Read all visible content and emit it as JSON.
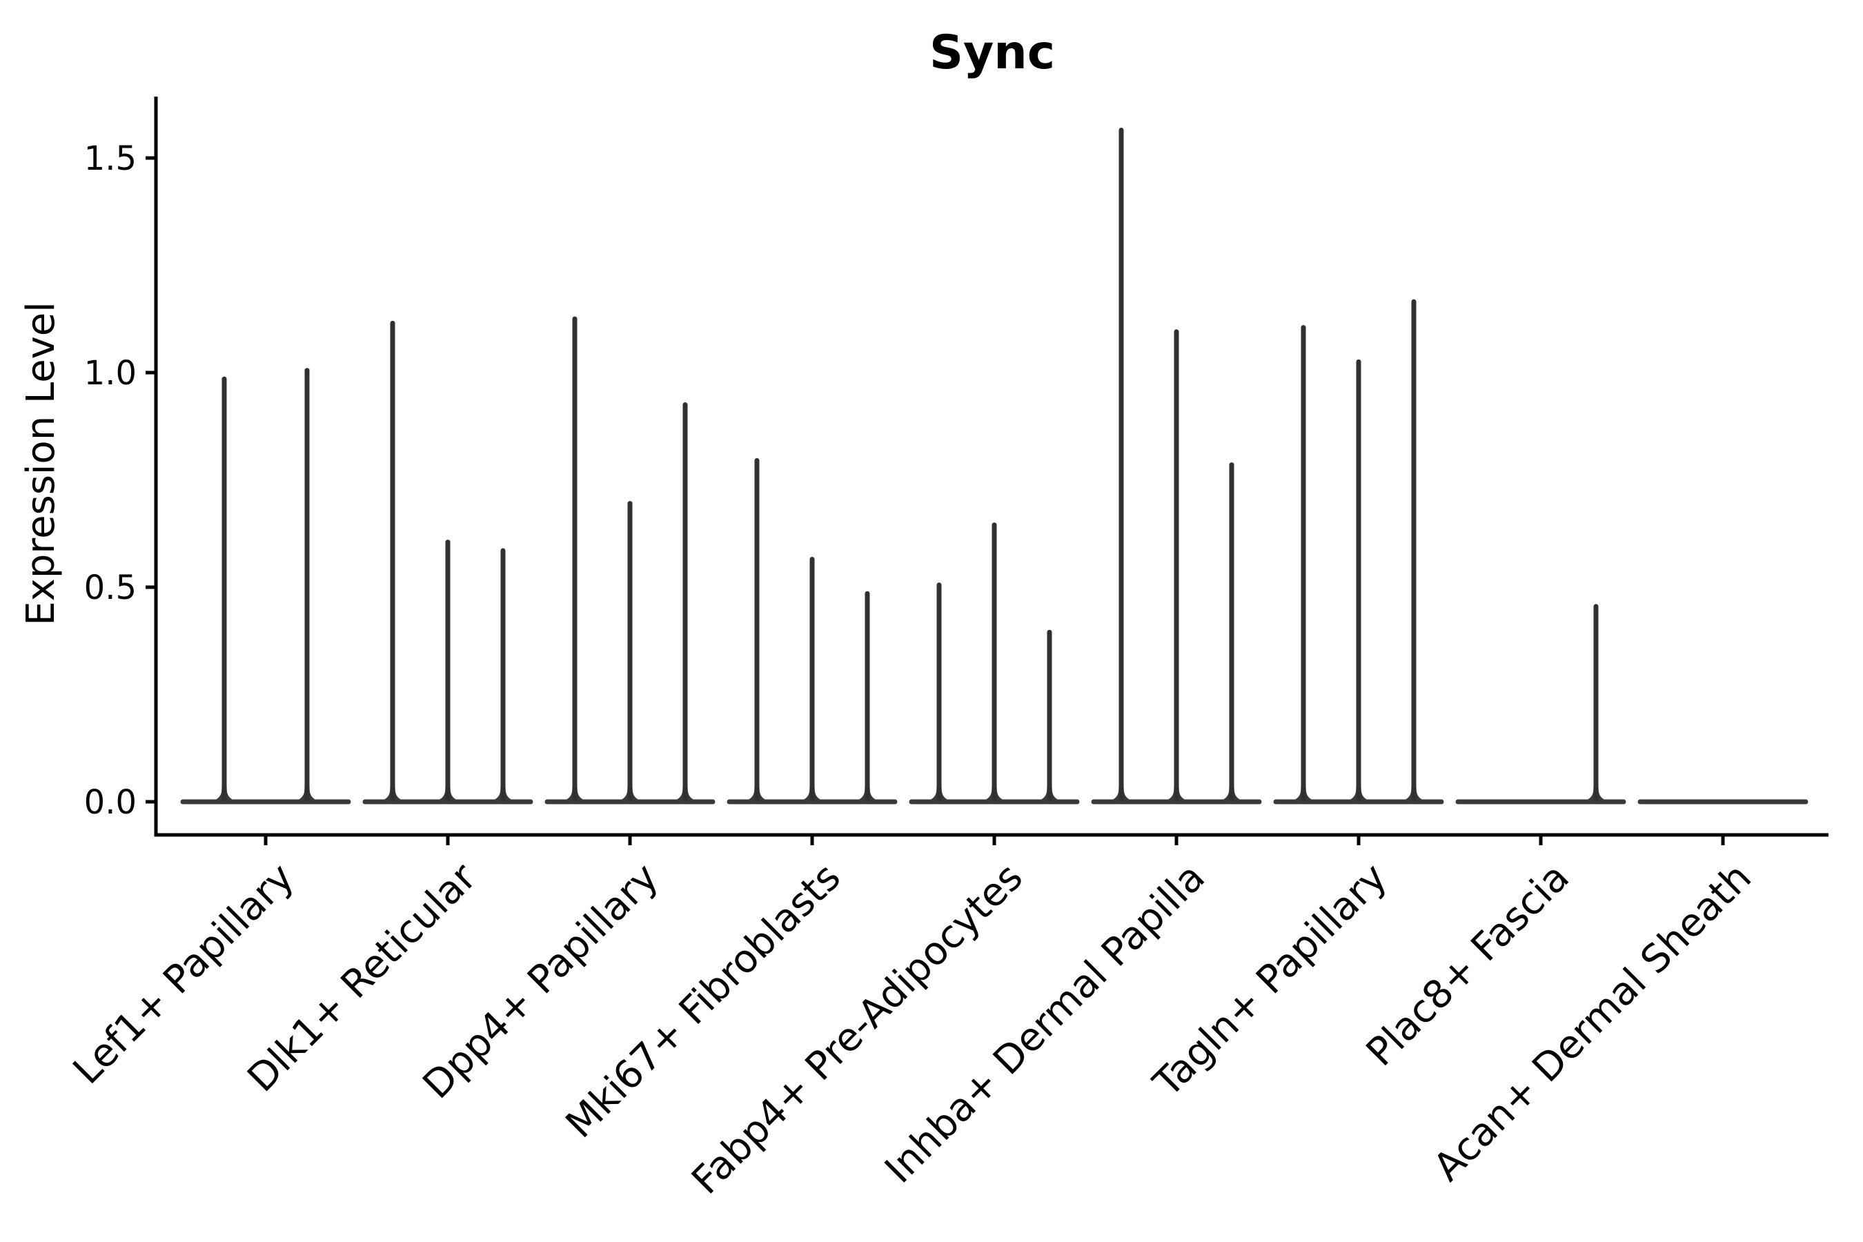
{
  "title": "Sync",
  "y_axis": {
    "label": "Expression Level",
    "ticks": [
      {
        "label": "1.5",
        "value": 1.5
      },
      {
        "label": "1.0",
        "value": 1.0
      },
      {
        "label": "0.5",
        "value": 0.5
      },
      {
        "label": "0.0",
        "value": 0.0
      }
    ]
  },
  "x_axis": {
    "categories": [
      "Lef1+ Papillary",
      "Dlk1+ Reticular",
      "Dpp4+ Papillary",
      "Mki67+ Fibroblasts",
      "Fabp4+ Pre-Adipocytes",
      "Inhba+ Dermal Papilla",
      "Tagln+ Papillary",
      "Plac8+ Fascia",
      "Acan+ Dermal Sheath"
    ]
  },
  "style": {
    "axis_color": "#000000",
    "violin_line_color": "#303030",
    "violin_base_color": "#3a3a3a",
    "background": "#ffffff"
  },
  "chart_data": {
    "type": "violin",
    "title": "Sync",
    "xlabel": "",
    "ylabel": "Expression Level",
    "ylim": [
      -0.08,
      1.64
    ],
    "yticks": [
      0.0,
      0.5,
      1.0,
      1.5
    ],
    "grid": false,
    "legend_position": "none",
    "notes": "Violin plot with near-zero bodies: each violin renders as a flat base segment at 0 plus a thin vertical spike up to its maximum expression value. 0 means a flat violin with no spike.",
    "categories": [
      "Lef1+ Papillary",
      "Dlk1+ Reticular",
      "Dpp4+ Papillary",
      "Mki67+ Fibroblasts",
      "Fabp4+ Pre-Adipocytes",
      "Inhba+ Dermal Papilla",
      "Tagln+ Papillary",
      "Plac8+ Fascia",
      "Acan+ Dermal Sheath"
    ],
    "series": [
      {
        "category": "Lef1+ Papillary",
        "violin_peaks": [
          0.99,
          1.01
        ]
      },
      {
        "category": "Dlk1+ Reticular",
        "violin_peaks": [
          1.12,
          0.61,
          0.59
        ]
      },
      {
        "category": "Dpp4+ Papillary",
        "violin_peaks": [
          1.13,
          0.7,
          0.93
        ]
      },
      {
        "category": "Mki67+ Fibroblasts",
        "violin_peaks": [
          0.8,
          0.57,
          0.49
        ]
      },
      {
        "category": "Fabp4+ Pre-Adipocytes",
        "violin_peaks": [
          0.51,
          0.65,
          0.4
        ]
      },
      {
        "category": "Inhba+ Dermal Papilla",
        "violin_peaks": [
          1.57,
          1.1,
          0.79
        ]
      },
      {
        "category": "Tagln+ Papillary",
        "violin_peaks": [
          1.11,
          1.03,
          1.17
        ]
      },
      {
        "category": "Plac8+ Fascia",
        "violin_peaks": [
          0,
          0,
          0.46
        ]
      },
      {
        "category": "Acan+ Dermal Sheath",
        "violin_peaks": [
          0,
          0,
          0
        ]
      }
    ]
  }
}
